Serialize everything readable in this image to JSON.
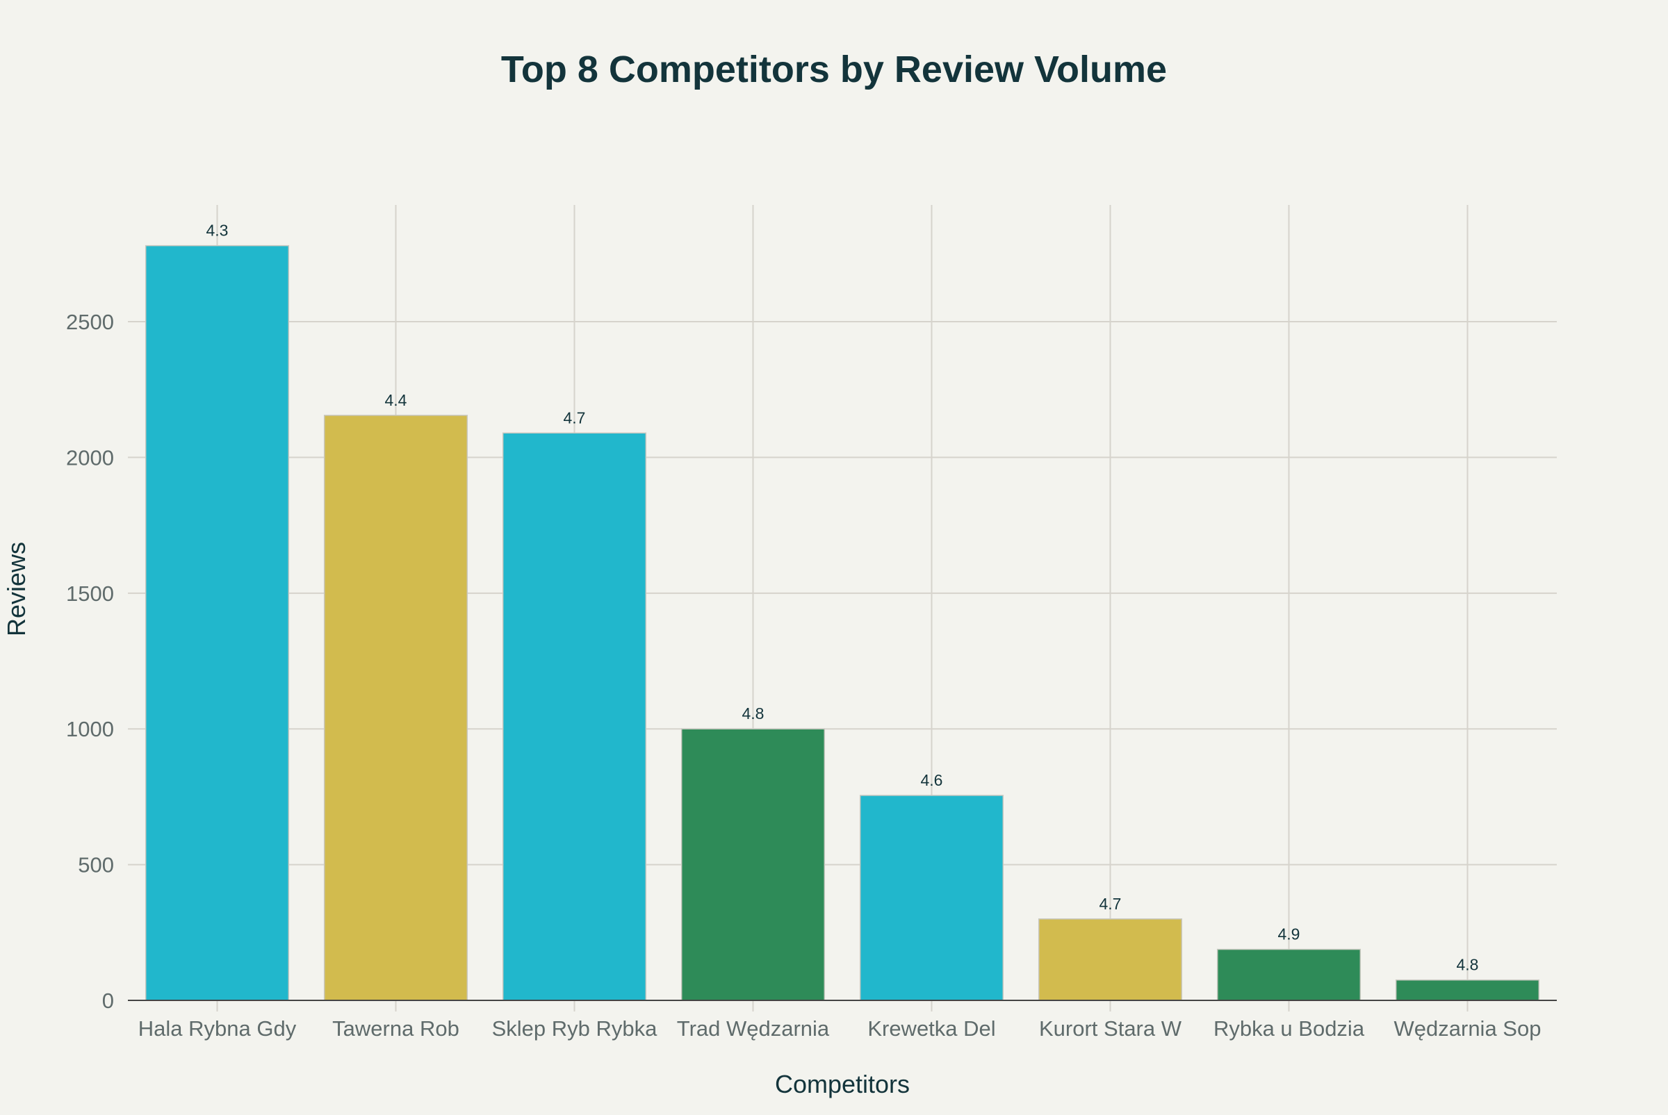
{
  "chart_data": {
    "type": "bar",
    "title": "Top 8 Competitors by Review Volume",
    "xlabel": "Competitors",
    "ylabel": "Reviews",
    "categories": [
      "Hala Rybna Gdy",
      "Tawerna Rob",
      "Sklep Ryb Rybka",
      "Trad Wędzarnia",
      "Krewetka Del",
      "Kurort Stara W",
      "Rybka u Bodzia",
      "Wędzarnia Sop"
    ],
    "values": [
      2780,
      2155,
      2090,
      1000,
      755,
      300,
      188,
      75
    ],
    "data_labels": [
      "4.3",
      "4.4",
      "4.7",
      "4.8",
      "4.6",
      "4.7",
      "4.9",
      "4.8"
    ],
    "bar_colors": [
      "#21b7cc",
      "#d2bb4e",
      "#21b7cc",
      "#2e8b58",
      "#21b7cc",
      "#d2bb4e",
      "#2e8b58",
      "#2e8b58"
    ],
    "ylim": [
      0,
      2930
    ],
    "yticks": [
      0,
      500,
      1000,
      1500,
      2000,
      2500
    ],
    "grid": true,
    "legend": "none"
  },
  "colors": {
    "background": "#f3f3ee",
    "title": "#13343b",
    "tick": "#5f6b6b",
    "grid": "#d6d3cc"
  }
}
